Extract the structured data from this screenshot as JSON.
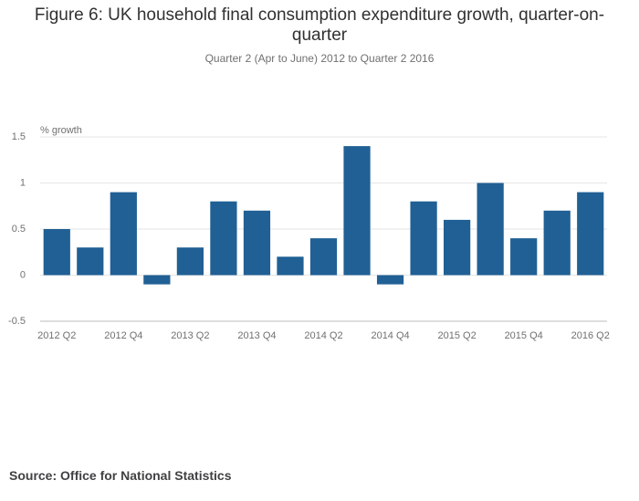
{
  "chart_data": {
    "type": "bar",
    "title": "Figure 6: UK household final consumption expenditure growth, quarter-on-quarter",
    "subtitle": "Quarter 2 (Apr to June) 2012 to Quarter 2 2016",
    "y_label": "% growth",
    "source": "Source: Office for National Statistics",
    "categories": [
      "2012 Q2",
      null,
      "2012 Q4",
      null,
      "2013 Q2",
      null,
      "2013 Q4",
      null,
      "2014 Q2",
      null,
      "2014 Q4",
      null,
      "2015 Q2",
      null,
      "2015 Q4",
      null,
      "2016 Q2"
    ],
    "values": [
      0.5,
      0.3,
      0.9,
      -0.1,
      0.3,
      0.8,
      0.7,
      0.2,
      0.4,
      1.4,
      -0.1,
      0.8,
      0.6,
      1.0,
      0.4,
      0.7,
      0.9
    ],
    "color": "#206095",
    "ylim": [
      -0.5,
      1.5
    ],
    "yticks": [
      1.5,
      1,
      0.5,
      0,
      -0.5
    ],
    "grid": true
  }
}
